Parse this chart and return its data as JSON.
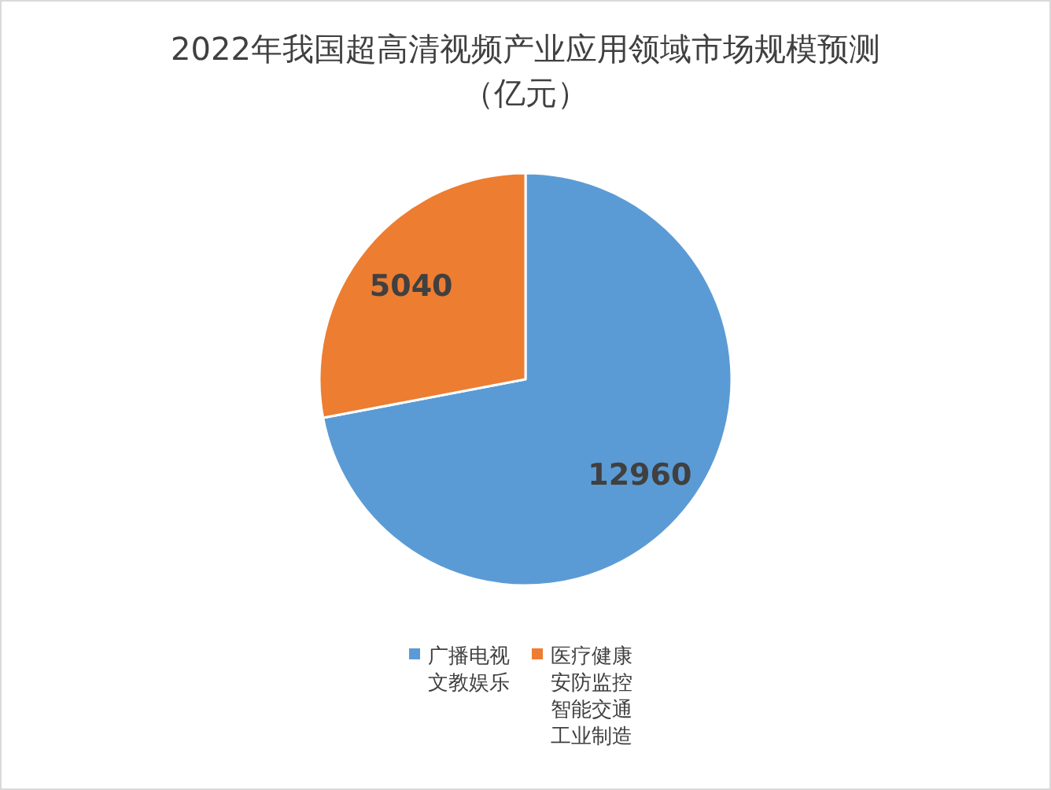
{
  "chart_data": {
    "type": "pie",
    "title": "2022年我国超高清视频产业应用领域市场规模预测（亿元）",
    "categories": [
      "广播电视文教娱乐",
      "医疗健康安防监控智能交通工业制造"
    ],
    "values": [
      12960,
      5040
    ],
    "colors": [
      "#5b9bd5",
      "#ed7d31"
    ],
    "data_labels": true,
    "legend": "bottom"
  }
}
